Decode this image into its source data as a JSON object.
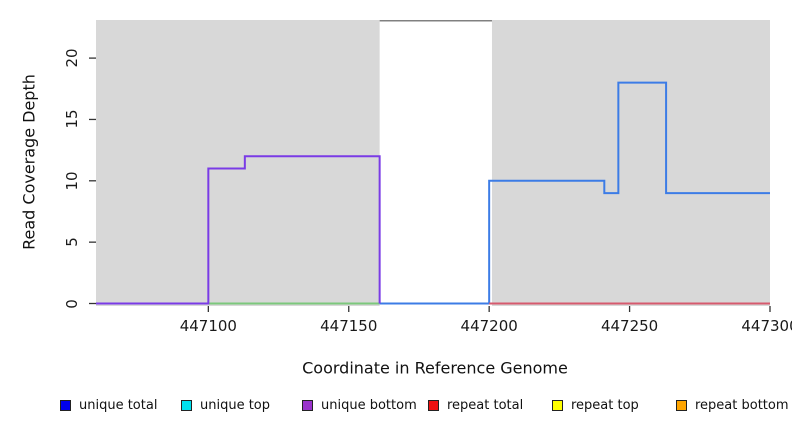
{
  "chart_data": {
    "type": "line",
    "subtype": "step-coverage",
    "title": "",
    "xlabel": "Coordinate in Reference Genome",
    "ylabel": "Read Coverage Depth",
    "xlim": [
      447060,
      447300
    ],
    "ylim": [
      0,
      23.2
    ],
    "grid": false,
    "x_ticks": [
      {
        "value": 447100,
        "label": "447100"
      },
      {
        "value": 447150,
        "label": "447150"
      },
      {
        "value": 447200,
        "label": "447200"
      },
      {
        "value": 447250,
        "label": "447250"
      },
      {
        "value": 447300,
        "label": "447300"
      }
    ],
    "y_ticks": [
      {
        "value": 0,
        "label": "0"
      },
      {
        "value": 5,
        "label": "5"
      },
      {
        "value": 10,
        "label": "10"
      },
      {
        "value": 15,
        "label": "15"
      },
      {
        "value": 20,
        "label": "20"
      }
    ],
    "background_bands": [
      {
        "name": "left-gray-region",
        "x0": 447060,
        "x1": 447161,
        "color": "#d8d8d8"
      },
      {
        "name": "right-gray-region",
        "x0": 447201,
        "x1": 447300,
        "color": "#d8d8d8"
      }
    ],
    "gap_top_border": {
      "x0": 447161,
      "x1": 447201,
      "color": "#808080"
    },
    "series": [
      {
        "name": "unique top (zero coverage)",
        "color": "#7CC87C",
        "points": [
          [
            447100,
            0
          ],
          [
            447161,
            0
          ]
        ]
      },
      {
        "name": "unique total / right-region coverage",
        "color": "#3C7CE6",
        "points": [
          [
            447161,
            0
          ],
          [
            447200,
            0
          ],
          [
            447200,
            10
          ],
          [
            447241,
            10
          ],
          [
            447241,
            9
          ],
          [
            447246,
            9
          ],
          [
            447246,
            18
          ],
          [
            447263,
            18
          ],
          [
            447263,
            9
          ],
          [
            447300,
            9
          ]
        ]
      },
      {
        "name": "repeat total (zero coverage)",
        "color": "#D65A6E",
        "points": [
          [
            447200,
            0
          ],
          [
            447300,
            0
          ]
        ]
      },
      {
        "name": "unique bottom coverage",
        "color": "#7A3BE6",
        "points": [
          [
            447060,
            0
          ],
          [
            447100,
            0
          ],
          [
            447100,
            11
          ],
          [
            447113,
            11
          ],
          [
            447113,
            12
          ],
          [
            447161,
            12
          ],
          [
            447161,
            0
          ]
        ]
      }
    ],
    "legend": [
      {
        "label": "unique total",
        "color": "#0000EE"
      },
      {
        "label": "unique top",
        "color": "#00E0EE"
      },
      {
        "label": "unique bottom",
        "color": "#9A33CC"
      },
      {
        "label": "repeat total",
        "color": "#EE1111"
      },
      {
        "label": "repeat top",
        "color": "#FFFF00"
      },
      {
        "label": "repeat bottom",
        "color": "#FFA500"
      }
    ],
    "legend_position": "bottom"
  }
}
